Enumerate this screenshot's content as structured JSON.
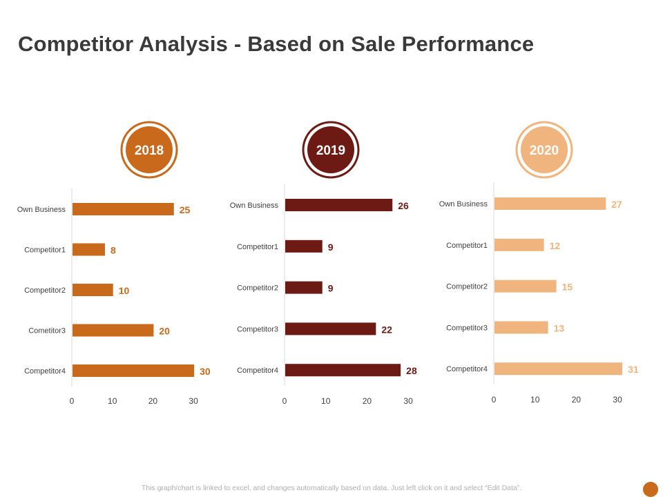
{
  "title": "Competitor Analysis - Based on Sale Performance",
  "footnote": "This graph/chart is linked to excel, and changes automatically based on data. Just left click on it and select “Edit Data”.",
  "chart_data": [
    {
      "type": "bar",
      "title": "2018",
      "color": "#c8691c",
      "categories": [
        "Own Business",
        "Competitor1",
        "Competitor2",
        "Cometitor3",
        "Competitor4"
      ],
      "values": [
        25,
        8,
        10,
        20,
        30
      ],
      "xlim": [
        0,
        30
      ],
      "ticks": [
        "0",
        "10",
        "20",
        "30"
      ]
    },
    {
      "type": "bar",
      "title": "2019",
      "color": "#6e1a14",
      "categories": [
        "Own Business",
        "Competitor1",
        "Competitor2",
        "Competitor3",
        "Competitor4"
      ],
      "values": [
        26,
        9,
        9,
        22,
        28
      ],
      "xlim": [
        0,
        30
      ],
      "ticks": [
        "0",
        "10",
        "20",
        "30"
      ]
    },
    {
      "type": "bar",
      "title": "2020",
      "color": "#f0b47e",
      "categories": [
        "Own Business",
        "Competitor1",
        "Competitor2",
        "Competitor3",
        "Competitor4"
      ],
      "values": [
        27,
        12,
        15,
        13,
        31
      ],
      "xlim": [
        0,
        30
      ],
      "ticks": [
        "0",
        "10",
        "20",
        "30"
      ]
    }
  ]
}
